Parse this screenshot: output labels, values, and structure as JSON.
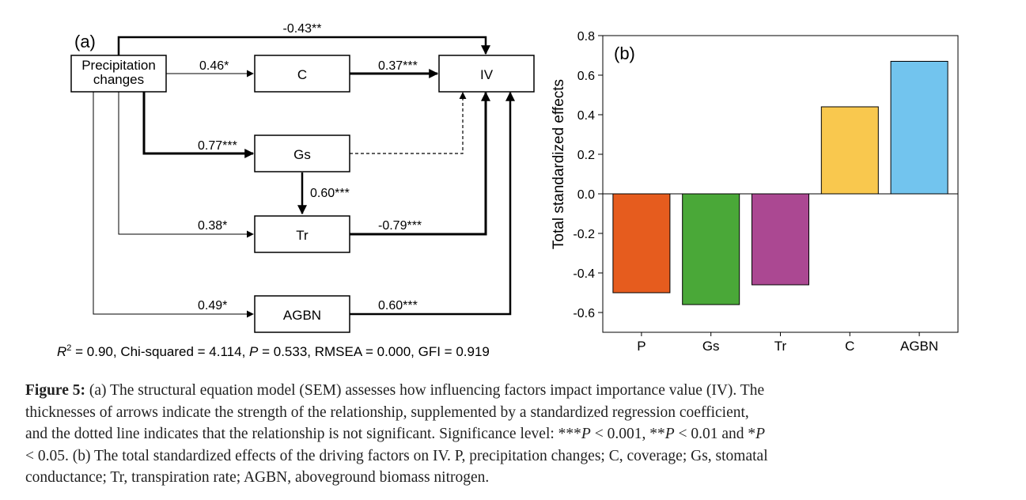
{
  "sem": {
    "panel_label": "(a)",
    "nodes": {
      "precip_line1": "Precipitation",
      "precip_line2": "changes",
      "c": "C",
      "iv": "IV",
      "gs": "Gs",
      "tr": "Tr",
      "agbn": "AGBN"
    },
    "paths": {
      "precip_iv": "-0.43**",
      "precip_c": "0.46*",
      "c_iv": "0.37***",
      "precip_gs": "0.77***",
      "gs_tr": "0.60***",
      "precip_tr": "0.38*",
      "tr_iv": "-0.79***",
      "precip_agbn": "0.49*",
      "agbn_iv": "0.60***"
    },
    "stats": {
      "r2_symbol": "R",
      "r2_sup": "2",
      "r2_rest": " = 0.90, Chi-squared = 4.114, ",
      "p_symbol": "P",
      "rest": " = 0.533, RMSEA = 0.000, GFI = 0.919"
    }
  },
  "chart_data": {
    "type": "bar",
    "panel_label": "(b)",
    "ylabel": "Total standardized effects",
    "categories": [
      "P",
      "Gs",
      "Tr",
      "C",
      "AGBN"
    ],
    "values": [
      -0.5,
      -0.56,
      -0.46,
      0.44,
      0.67
    ],
    "colors": [
      "#e65c1e",
      "#4aa838",
      "#ab4892",
      "#f9c84e",
      "#72c4ee"
    ],
    "ylim": [
      -0.7,
      0.8
    ],
    "yticks": [
      -0.6,
      -0.4,
      -0.2,
      0.0,
      0.2,
      0.4,
      0.6,
      0.8
    ],
    "ytick_labels": [
      "-0.6",
      "-0.4",
      "-0.2",
      "0.0",
      "0.2",
      "0.4",
      "0.6",
      "0.8"
    ],
    "grid": false
  },
  "caption": {
    "label": "Figure 5:",
    "line1": " (a) The structural equation model (SEM) assesses how influencing factors impact importance value (IV). The",
    "line2": "thicknesses of arrows indicate the strength of the relationship, supplemented by a standardized regression coefficient,",
    "line3a": "and the dotted line indicates that the relationship is not significant. Significance level: ***",
    "p1": "P",
    "line3b": " < 0.001, **",
    "p2": "P",
    "line3c": " < 0.01 and *",
    "p3": "P",
    "line4": "< 0.05. (b) The total standardized effects of the driving factors on IV. P, precipitation changes; C, coverage; Gs, stomatal",
    "line5": "conductance; Tr, transpiration rate; AGBN, aboveground biomass nitrogen."
  }
}
